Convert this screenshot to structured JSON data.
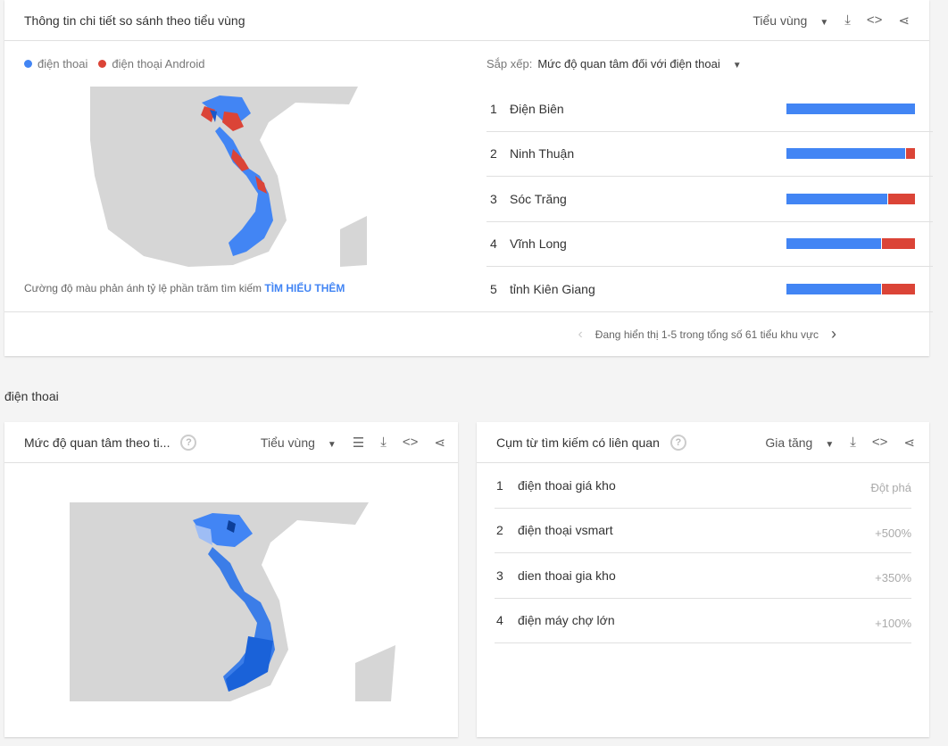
{
  "compare_card": {
    "title": "Thông tin chi tiết so sánh theo tiểu vùng",
    "region_select": "Tiểu vùng",
    "legend": [
      {
        "label": "điện thoai",
        "color": "#4285f4"
      },
      {
        "label": "điện thoại Android",
        "color": "#db4437"
      }
    ],
    "note": "Cường độ màu phản ánh tỷ lệ phần trăm tìm kiếm",
    "learn_more": "TÌM HIỂU THÊM",
    "sort_label": "Sắp xếp:",
    "sort_value": "Mức độ quan tâm đối với điện thoai",
    "rows": [
      {
        "rank": "1",
        "name": "Điện Biên",
        "share_dien_thoai": 1.0
      },
      {
        "rank": "2",
        "name": "Ninh Thuận",
        "share_dien_thoai": 0.93
      },
      {
        "rank": "3",
        "name": "Sóc Trăng",
        "share_dien_thoai": 0.79
      },
      {
        "rank": "4",
        "name": "Vĩnh Long",
        "share_dien_thoai": 0.74
      },
      {
        "rank": "5",
        "name": "tỉnh Kiên Giang",
        "share_dien_thoai": 0.74
      }
    ],
    "pagination": "Đang hiển thị 1-5 trong tổng số 61 tiểu khu vực"
  },
  "section_title": "điện thoai",
  "interest_card": {
    "title": "Mức độ quan tâm theo ti...",
    "region_select": "Tiểu vùng"
  },
  "related_card": {
    "title": "Cụm từ tìm kiếm có liên quan",
    "filter": "Gia tăng",
    "rows": [
      {
        "rank": "1",
        "term": "điện thoai giá kho",
        "value": "Đột phá"
      },
      {
        "rank": "2",
        "term": "điện thoại vsmart",
        "value": "+500%"
      },
      {
        "rank": "3",
        "term": "dien thoai gia kho",
        "value": "+350%"
      },
      {
        "rank": "4",
        "term": "điện máy chợ lớn",
        "value": "+100%"
      }
    ]
  }
}
